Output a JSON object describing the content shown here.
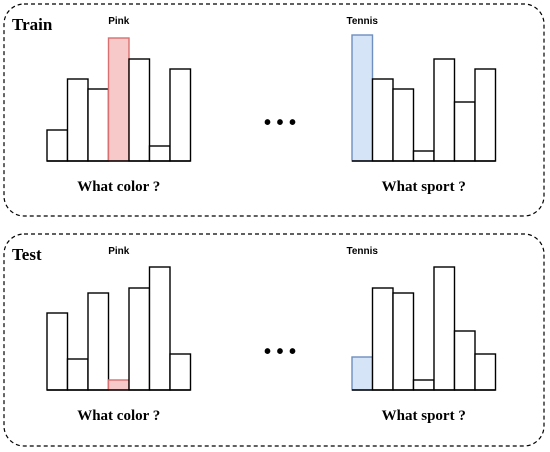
{
  "colors": {
    "pink_fill": "#f8c9c9",
    "pink_stroke": "#d9706f",
    "blue_fill": "#d6e4f7",
    "blue_stroke": "#6e8fbf"
  },
  "panels": [
    {
      "title": "Train",
      "charts": [
        {
          "question": "What color ?",
          "highlight_label": "Pink",
          "highlight_index": 3,
          "highlight_color": "pink",
          "values": [
            31,
            82,
            72,
            123,
            102,
            15,
            92
          ]
        },
        {
          "question": "What sport ?",
          "highlight_label": "Tennis",
          "highlight_index": 0,
          "highlight_color": "blue",
          "values": [
            126,
            82,
            72,
            10,
            102,
            59,
            92
          ]
        }
      ]
    },
    {
      "title": "Test",
      "charts": [
        {
          "question": "What color ?",
          "highlight_label": "Pink",
          "highlight_index": 3,
          "highlight_color": "pink",
          "values": [
            77,
            31,
            97,
            10,
            102,
            123,
            36
          ]
        },
        {
          "question": "What sport ?",
          "highlight_label": "Tennis",
          "highlight_index": 0,
          "highlight_color": "blue",
          "values": [
            33,
            102,
            97,
            10,
            123,
            59,
            36
          ]
        }
      ]
    }
  ],
  "ellipsis": "• • •"
}
